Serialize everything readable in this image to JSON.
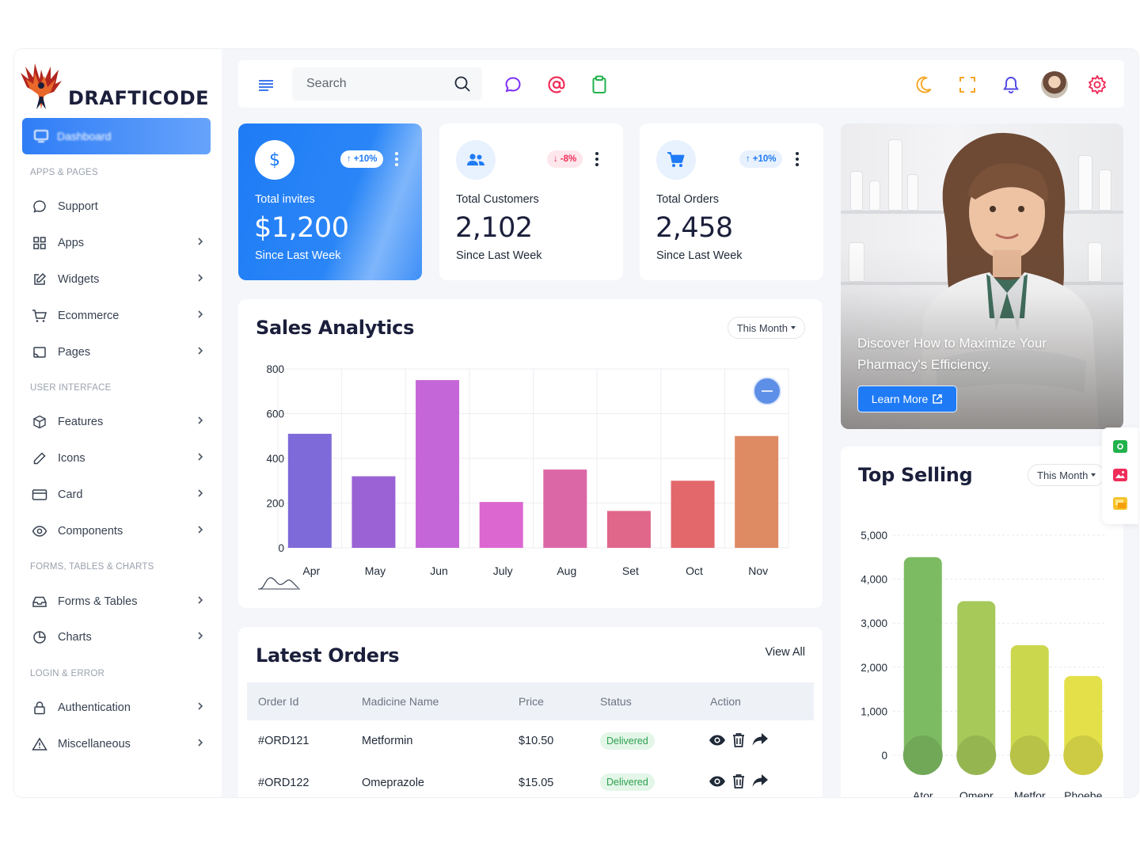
{
  "brand": {
    "name": "DRAFTICODE"
  },
  "sidebar": {
    "active_item": "Dashboard",
    "sections": [
      {
        "title": "APPS & PAGES",
        "items": [
          {
            "label": "Support",
            "icon": "chat-bubble-icon",
            "chevron": false
          },
          {
            "label": "Apps",
            "icon": "grid-icon",
            "chevron": true
          },
          {
            "label": "Widgets",
            "icon": "edit-square-icon",
            "chevron": true
          },
          {
            "label": "Ecommerce",
            "icon": "cart-icon",
            "chevron": true
          },
          {
            "label": "Pages",
            "icon": "pages-icon",
            "chevron": true
          }
        ]
      },
      {
        "title": "USER INTERFACE",
        "items": [
          {
            "label": "Features",
            "icon": "cube-icon",
            "chevron": true
          },
          {
            "label": "Icons",
            "icon": "pencil-icon",
            "chevron": true
          },
          {
            "label": "Card",
            "icon": "card-icon",
            "chevron": true
          },
          {
            "label": "Components",
            "icon": "eye-icon",
            "chevron": true
          }
        ]
      },
      {
        "title": "FORMS, TABLES & CHARTS",
        "items": [
          {
            "label": "Forms & Tables",
            "icon": "inbox-icon",
            "chevron": true
          },
          {
            "label": "Charts",
            "icon": "pie-chart-icon",
            "chevron": true
          }
        ]
      },
      {
        "title": "LOGIN & ERROR",
        "items": [
          {
            "label": "Authentication",
            "icon": "lock-icon",
            "chevron": true
          },
          {
            "label": "Miscellaneous",
            "icon": "warning-icon",
            "chevron": true
          }
        ]
      }
    ]
  },
  "topbar": {
    "search_placeholder": "Search",
    "colors": {
      "chat": "#7b2ff7",
      "at": "#f02d5a",
      "clipboard": "#22b24c",
      "moon": "#f5a623",
      "fullscreen": "#f5a623",
      "bell": "#4f46e5",
      "gear": "#f02d5a"
    }
  },
  "stats": [
    {
      "label": "Total invites",
      "value": "$1,200",
      "since": "Since Last Week",
      "badge": "+10%",
      "trend": "up",
      "icon": "dollar-icon"
    },
    {
      "label": "Total Customers",
      "value": "2,102",
      "since": "Since Last Week",
      "badge": "-8%",
      "trend": "down",
      "icon": "users-icon"
    },
    {
      "label": "Total Orders",
      "value": "2,458",
      "since": "Since Last Week",
      "badge": "+10%",
      "trend": "up",
      "icon": "cart-icon"
    }
  ],
  "promo": {
    "headline": "Discover How to Maximize Your Pharmacy's Efficiency.",
    "button": "Learn More"
  },
  "sales": {
    "title": "Sales Analytics",
    "filter": "This Month"
  },
  "top_selling": {
    "title": "Top Selling",
    "filter": "This Month"
  },
  "chart_data": [
    {
      "type": "bar",
      "categories": [
        "Apr",
        "May",
        "Jun",
        "July",
        "Aug",
        "Set",
        "Oct",
        "Nov"
      ],
      "values": [
        510,
        320,
        750,
        205,
        350,
        165,
        300,
        500
      ],
      "colors": [
        "#7f6ad9",
        "#9b62d6",
        "#c566d8",
        "#dc67d0",
        "#dc67a6",
        "#e0678a",
        "#e2686b",
        "#de8a62"
      ],
      "yticks": [
        "800",
        "600",
        "400",
        "200",
        "0"
      ],
      "ylim": [
        0,
        800
      ]
    },
    {
      "type": "bar",
      "categories": [
        "Ator",
        "Omepr",
        "Metfor",
        "Phoebe"
      ],
      "values": [
        4500,
        3500,
        2500,
        1800
      ],
      "colors": [
        "#7dbb62",
        "#a6c95a",
        "#cbd84e",
        "#e4e04a"
      ],
      "yticks": [
        "5,000",
        "4,000",
        "3,000",
        "2,000",
        "1,000",
        "0"
      ],
      "ylim": [
        0,
        5000
      ]
    }
  ],
  "orders": {
    "title": "Latest Orders",
    "view_all": "View All",
    "columns": [
      "Order Id",
      "Madicine Name",
      "Price",
      "Status",
      "Action"
    ],
    "rows": [
      {
        "id": "#ORD121",
        "name": "Metformin",
        "price": "$10.50",
        "status": "Delivered"
      },
      {
        "id": "#ORD122",
        "name": "Omeprazole",
        "price": "$15.05",
        "status": "Delivered"
      }
    ]
  }
}
